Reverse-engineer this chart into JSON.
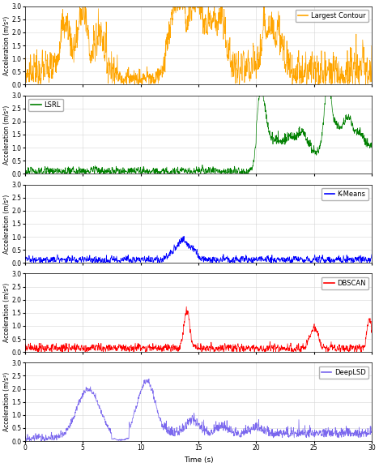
{
  "xlabel": "Time (s)",
  "ylabel": "Acceleration (m/s²)",
  "xlim": [
    0,
    30
  ],
  "xticks": [
    0,
    5,
    10,
    15,
    20,
    25,
    30
  ],
  "ylim": [
    0.0,
    3.0
  ],
  "yticks": [
    0.0,
    0.5,
    1.0,
    1.5,
    2.0,
    2.5,
    3.0
  ],
  "subplots": [
    {
      "label": "Largest Contour",
      "color": "#FFA500",
      "legend_loc": "upper right"
    },
    {
      "label": "LSRL",
      "color": "#008000",
      "legend_loc": "upper left"
    },
    {
      "label": "K-Means",
      "color": "#0000FF",
      "legend_loc": "upper right"
    },
    {
      "label": "DBSCAN",
      "color": "#FF0000",
      "legend_loc": "upper right"
    },
    {
      "label": "DeepLSD",
      "color": "#7B68EE",
      "legend_loc": "upper right"
    }
  ],
  "figsize": [
    4.68,
    5.76
  ],
  "dpi": 100
}
